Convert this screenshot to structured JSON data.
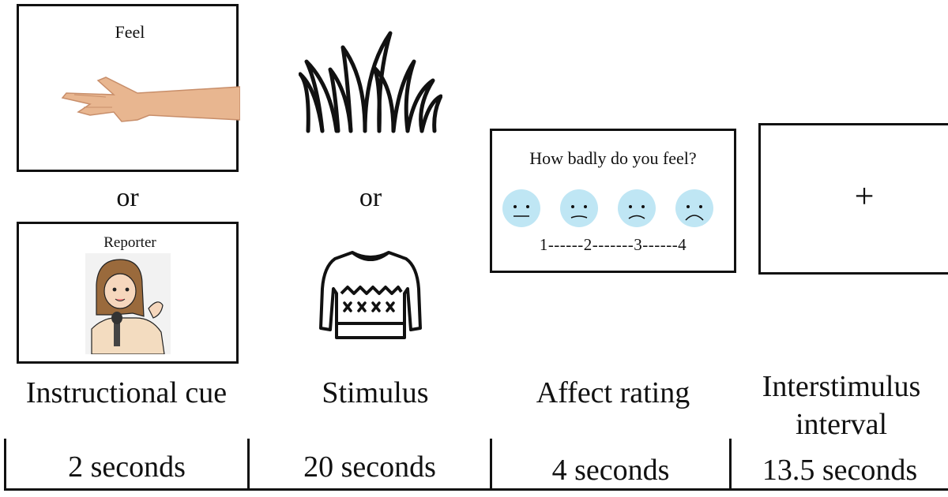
{
  "instructional_cue": {
    "feel_word": "Feel",
    "or_text": "or",
    "reporter_word": "Reporter",
    "label": "Instructional cue",
    "duration": "2 seconds"
  },
  "stimulus": {
    "or_text": "or",
    "label": "Stimulus",
    "duration": "20 seconds"
  },
  "affect_rating": {
    "question": "How badly do you feel?",
    "scale": "1------2-------3------4",
    "label": "Affect rating",
    "duration": "4 seconds"
  },
  "interstimulus": {
    "fixation": "+",
    "label_line1": "Interstimulus",
    "label_line2": "interval",
    "duration": "13.5 seconds"
  },
  "colors": {
    "face_fill": "#bfe6f4",
    "face_stroke": "#111111",
    "skin": "#e8b690"
  }
}
